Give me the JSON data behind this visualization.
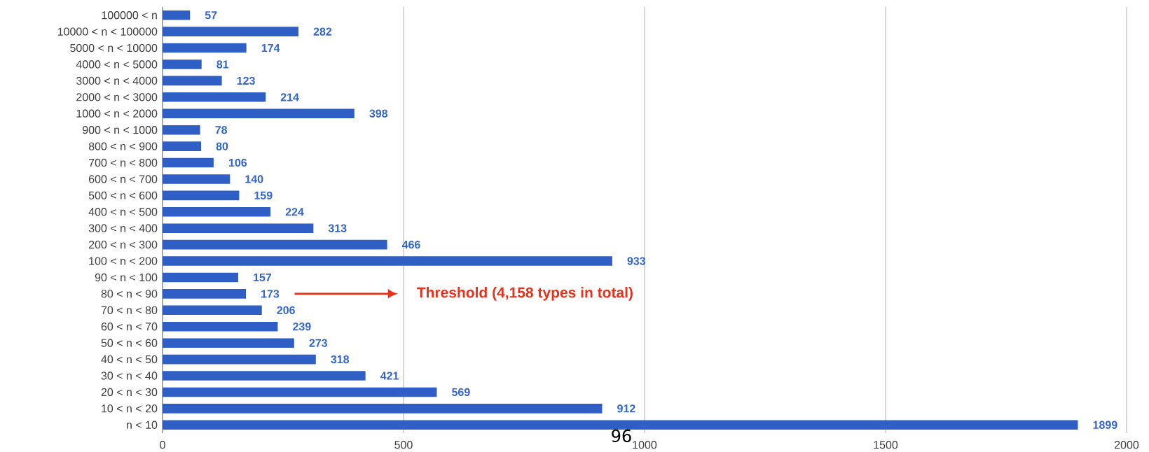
{
  "chart_data": {
    "type": "bar",
    "orientation": "horizontal",
    "categories": [
      "100000 < n",
      "10000 < n < 100000",
      "5000 < n < 10000",
      "4000 < n < 5000",
      "3000 < n < 4000",
      "2000 < n < 3000",
      "1000 < n < 2000",
      "900 < n < 1000",
      "800 < n < 900",
      "700 < n < 800",
      "600 < n < 700",
      "500 < n < 600",
      "400 < n < 500",
      "300 < n < 400",
      "200 < n < 300",
      "100 < n < 200",
      "90 < n < 100",
      "80 < n < 90",
      "70 < n < 80",
      "60 < n < 70",
      "50 < n < 60",
      "40 < n < 50",
      "30 < n < 40",
      "20 < n < 30",
      "10 < n < 20",
      "n < 10"
    ],
    "values": [
      57,
      282,
      174,
      81,
      123,
      214,
      398,
      78,
      80,
      106,
      140,
      159,
      224,
      313,
      466,
      933,
      157,
      173,
      206,
      239,
      273,
      318,
      421,
      569,
      912,
      1899
    ],
    "color": "#2f5ec4",
    "xlim": [
      0,
      2000
    ],
    "xticks": [
      0,
      500,
      1000,
      1500,
      2000
    ],
    "grid": "x",
    "data_labels": true,
    "annotations": [
      "Threshold (4,158 types in total)",
      "96"
    ]
  }
}
